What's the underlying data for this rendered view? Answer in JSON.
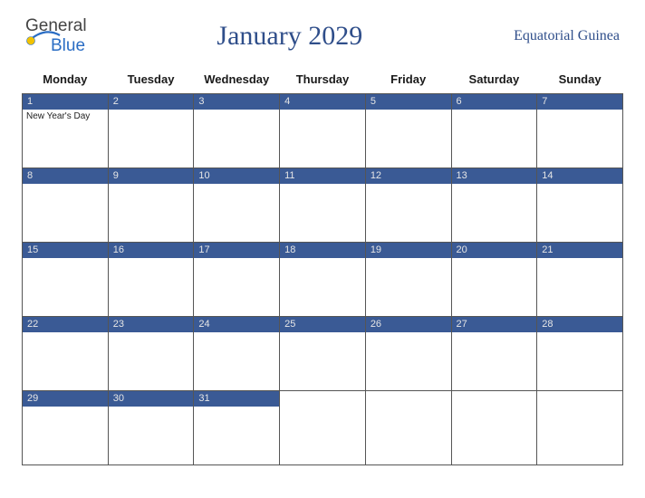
{
  "logo": {
    "part1": "General",
    "part2": "Blue"
  },
  "title": "January 2029",
  "region": "Equatorial Guinea",
  "colors": {
    "brand_blue": "#2a6dc4",
    "header_text": "#2f4e8a",
    "cell_bar": "#3a5a95",
    "cell_bar_text": "#e6e6e6",
    "border": "#555555",
    "background": "#ffffff"
  },
  "weekdays": [
    "Monday",
    "Tuesday",
    "Wednesday",
    "Thursday",
    "Friday",
    "Saturday",
    "Sunday"
  ],
  "weeks": [
    [
      {
        "day": "1",
        "event": "New Year's Day"
      },
      {
        "day": "2"
      },
      {
        "day": "3"
      },
      {
        "day": "4"
      },
      {
        "day": "5"
      },
      {
        "day": "6"
      },
      {
        "day": "7"
      }
    ],
    [
      {
        "day": "8"
      },
      {
        "day": "9"
      },
      {
        "day": "10"
      },
      {
        "day": "11"
      },
      {
        "day": "12"
      },
      {
        "day": "13"
      },
      {
        "day": "14"
      }
    ],
    [
      {
        "day": "15"
      },
      {
        "day": "16"
      },
      {
        "day": "17"
      },
      {
        "day": "18"
      },
      {
        "day": "19"
      },
      {
        "day": "20"
      },
      {
        "day": "21"
      }
    ],
    [
      {
        "day": "22"
      },
      {
        "day": "23"
      },
      {
        "day": "24"
      },
      {
        "day": "25"
      },
      {
        "day": "26"
      },
      {
        "day": "27"
      },
      {
        "day": "28"
      }
    ],
    [
      {
        "day": "29"
      },
      {
        "day": "30"
      },
      {
        "day": "31"
      },
      {
        "day": "",
        "empty": true
      },
      {
        "day": "",
        "empty": true
      },
      {
        "day": "",
        "empty": true
      },
      {
        "day": "",
        "empty": true
      }
    ]
  ]
}
